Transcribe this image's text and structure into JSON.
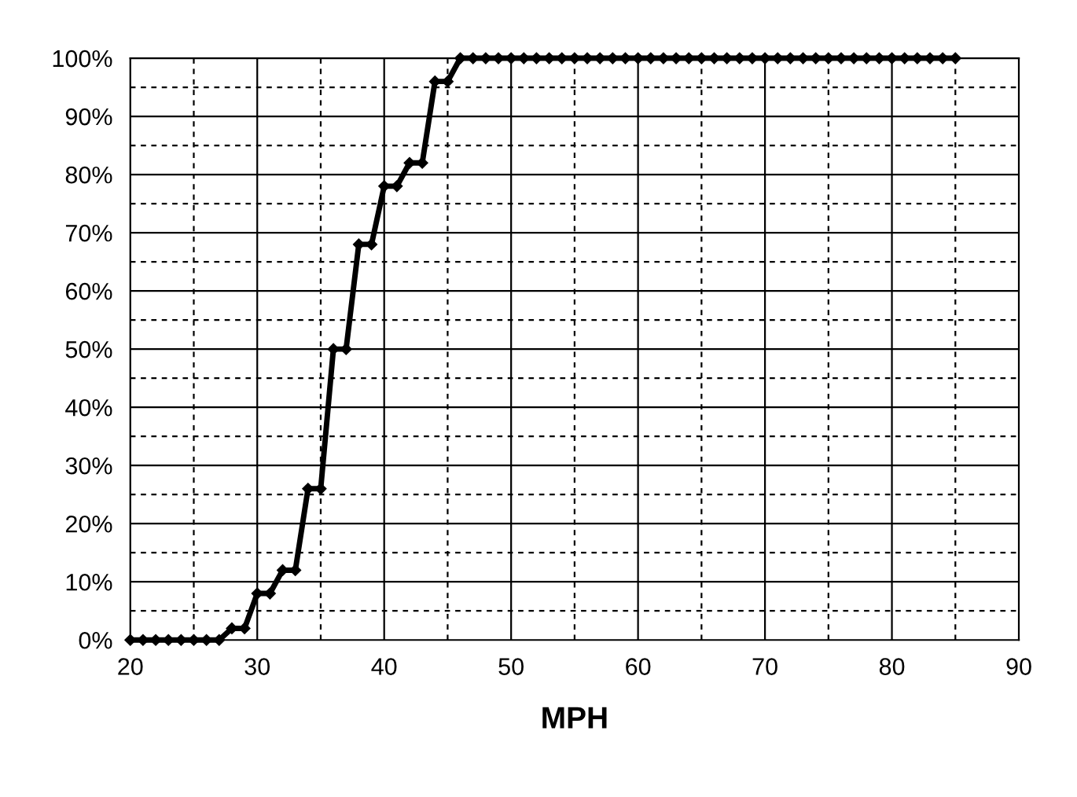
{
  "chart_data": {
    "type": "line",
    "xlabel": "MPH",
    "x": [
      20,
      21,
      22,
      23,
      24,
      25,
      26,
      27,
      28,
      29,
      30,
      31,
      32,
      33,
      34,
      35,
      36,
      37,
      38,
      39,
      40,
      41,
      42,
      43,
      44,
      45,
      46,
      47,
      48,
      49,
      50,
      51,
      52,
      53,
      54,
      55,
      56,
      57,
      58,
      59,
      60,
      61,
      62,
      63,
      64,
      65,
      66,
      67,
      68,
      69,
      70,
      71,
      72,
      73,
      74,
      75,
      76,
      77,
      78,
      79,
      80,
      81,
      82,
      83,
      84,
      85
    ],
    "series": [
      {
        "color": "#000000",
        "values": [
          0,
          0,
          0,
          0,
          0,
          0,
          0,
          0,
          2,
          2,
          8,
          8,
          12,
          12,
          26,
          26,
          50,
          50,
          68,
          68,
          78,
          78,
          82,
          82,
          96,
          96,
          100,
          100,
          100,
          100,
          100,
          100,
          100,
          100,
          100,
          100,
          100,
          100,
          100,
          100,
          100,
          100,
          100,
          100,
          100,
          100,
          100,
          100,
          100,
          100,
          100,
          100,
          100,
          100,
          100,
          100,
          100,
          100,
          100,
          100,
          100,
          100,
          100,
          100,
          100,
          100
        ]
      }
    ],
    "xlim": [
      20,
      90
    ],
    "xticks": [
      20,
      30,
      40,
      50,
      60,
      70,
      80,
      90
    ],
    "ylim": [
      0,
      100
    ],
    "yticks": [
      {
        "value": 0,
        "label": "0%"
      },
      {
        "value": 10,
        "label": "10%"
      },
      {
        "value": 20,
        "label": "20%"
      },
      {
        "value": 30,
        "label": "30%"
      },
      {
        "value": 40,
        "label": "40%"
      },
      {
        "value": 50,
        "label": "50%"
      },
      {
        "value": 60,
        "label": "60%"
      },
      {
        "value": 70,
        "label": "70%"
      },
      {
        "value": 80,
        "label": "80%"
      },
      {
        "value": 90,
        "label": "90%"
      },
      {
        "value": 100,
        "label": "100%"
      }
    ],
    "grid": true,
    "marker": "diamond",
    "line_style": "solid"
  }
}
